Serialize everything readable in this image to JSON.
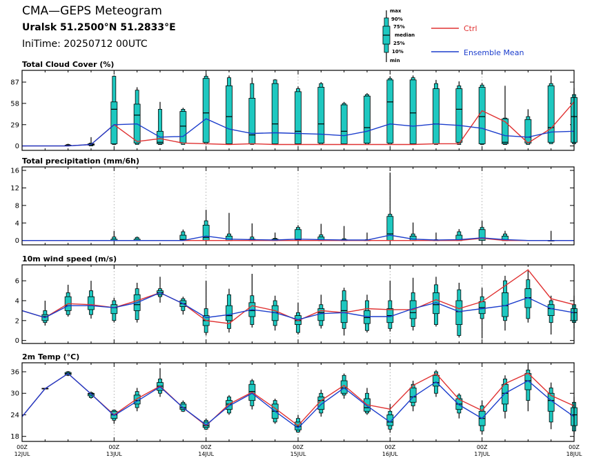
{
  "header": {
    "title": "CMA—GEPS Meteogram",
    "location": "Uralsk 51.2500°N 51.2833°E",
    "init": "IniTime: 20250712 00UTC"
  },
  "legend": {
    "box_labels": [
      "max",
      "90%",
      "75%",
      "median",
      "25%",
      "10%",
      "min"
    ],
    "ctrl_label": "Ctrl",
    "mean_label": "Ensemble Mean",
    "ctrl_color": "#e03030",
    "mean_color": "#1a3ccc",
    "box_color": "#1ec8c0"
  },
  "x_axis": {
    "labels": [
      {
        "i": 0,
        "top": "00Z",
        "bot": "12JUL"
      },
      {
        "i": 4,
        "top": "00Z",
        "bot": "13JUL"
      },
      {
        "i": 8,
        "top": "00Z",
        "bot": "14JUL"
      },
      {
        "i": 12,
        "top": "00Z",
        "bot": "15JUL"
      },
      {
        "i": 16,
        "top": "00Z",
        "bot": "16JUL"
      },
      {
        "i": 20,
        "top": "00Z",
        "bot": "17JUL"
      },
      {
        "i": 24,
        "top": "00Z",
        "bot": "18JUL"
      }
    ]
  },
  "chart_data": [
    {
      "type": "box",
      "title": "Total Cloud Cover (%)",
      "unit": "%",
      "ylim": [
        -6,
        103
      ],
      "yticks": [
        "0",
        "29",
        "58",
        "87"
      ],
      "ytick_values": [
        0,
        29,
        58,
        87
      ],
      "ctrl": [
        0,
        0,
        0,
        2,
        29,
        6,
        10,
        4,
        3,
        2,
        3,
        2,
        2,
        2,
        2,
        2,
        2,
        2,
        3,
        3,
        48,
        33,
        4,
        24,
        60
      ],
      "mean": [
        0,
        0,
        0,
        2,
        29,
        30,
        12,
        13,
        37,
        23,
        17,
        18,
        17,
        16,
        14,
        20,
        30,
        27,
        30,
        28,
        24,
        14,
        12,
        19,
        20
      ],
      "boxes": [
        null,
        null,
        [
          0,
          0,
          0,
          1,
          1,
          2,
          3
        ],
        [
          0,
          0,
          1,
          2,
          3,
          4,
          12
        ],
        [
          2,
          2,
          3,
          50,
          60,
          95,
          96
        ],
        [
          2,
          2,
          4,
          42,
          57,
          76,
          80
        ],
        [
          2,
          2,
          3,
          5,
          20,
          50,
          60
        ],
        [
          2,
          2,
          4,
          27,
          47,
          50,
          52
        ],
        [
          2,
          3,
          5,
          45,
          92,
          95,
          98
        ],
        [
          2,
          2,
          3,
          40,
          82,
          93,
          96
        ],
        [
          2,
          2,
          3,
          15,
          65,
          85,
          93
        ],
        [
          2,
          2,
          3,
          30,
          85,
          90,
          91
        ],
        [
          2,
          2,
          3,
          20,
          74,
          78,
          81
        ],
        [
          2,
          2,
          4,
          30,
          80,
          85,
          87
        ],
        [
          2,
          2,
          3,
          20,
          56,
          58,
          60
        ],
        [
          2,
          2,
          4,
          25,
          68,
          70,
          72
        ],
        [
          2,
          2,
          4,
          60,
          90,
          92,
          95
        ],
        [
          2,
          2,
          3,
          45,
          90,
          93,
          96
        ],
        [
          2,
          2,
          3,
          30,
          78,
          85,
          90
        ],
        [
          2,
          2,
          5,
          50,
          78,
          82,
          88
        ],
        [
          2,
          2,
          3,
          40,
          80,
          83,
          86
        ],
        [
          2,
          2,
          3,
          5,
          37,
          38,
          82
        ],
        [
          2,
          2,
          4,
          12,
          36,
          40,
          50
        ],
        [
          3,
          3,
          5,
          25,
          82,
          85,
          96
        ],
        [
          3,
          3,
          5,
          40,
          66,
          70,
          79
        ]
      ]
    },
    {
      "type": "box",
      "title": "Total precipitation (mm/6h)",
      "unit": "mm/6h",
      "ylim": [
        -1,
        16.8
      ],
      "yticks": [
        "0",
        "4",
        "8",
        "12",
        "16"
      ],
      "ytick_values": [
        0,
        4,
        8,
        12,
        16
      ],
      "ctrl": [
        0,
        0,
        0,
        0,
        0,
        0,
        0,
        0,
        0,
        0,
        0,
        0,
        0,
        0,
        0,
        0,
        0,
        0,
        0,
        0,
        0.5,
        0,
        0,
        0,
        0
      ],
      "mean": [
        0,
        0,
        0,
        0,
        0,
        0,
        0,
        0,
        1,
        0.3,
        0.2,
        0.1,
        0.3,
        0.2,
        0.1,
        0.1,
        1.2,
        0.3,
        0.1,
        0.2,
        0.6,
        0.2,
        0,
        0,
        0
      ],
      "boxes": [
        null,
        null,
        null,
        null,
        [
          0,
          0,
          0,
          0,
          0.3,
          0.8,
          2.2
        ],
        [
          0,
          0,
          0,
          0,
          0.3,
          0.7,
          0.9
        ],
        null,
        [
          0,
          0,
          0,
          0.2,
          1.2,
          2,
          2.5
        ],
        [
          0,
          0,
          0,
          0.7,
          3.5,
          4.5,
          7
        ],
        [
          0,
          0,
          0,
          0,
          1,
          1.5,
          6.3
        ],
        [
          0,
          0,
          0,
          0,
          0.3,
          0.8,
          3.9
        ],
        [
          0,
          0,
          0,
          0,
          0.3,
          0.5,
          1.8
        ],
        [
          0,
          0,
          0,
          0.2,
          2.5,
          3,
          3.5
        ],
        [
          0,
          0,
          0,
          0,
          0.8,
          1.3,
          3.8
        ],
        [
          0,
          0,
          0,
          0,
          0.2,
          0.4,
          3.3
        ],
        [
          0,
          0,
          0,
          0,
          0.1,
          0.2,
          1.8
        ],
        [
          0,
          0,
          0,
          1.5,
          5.5,
          6,
          15.5
        ],
        [
          0,
          0,
          0,
          0,
          1,
          1.5,
          4.1
        ],
        [
          0,
          0,
          0,
          0,
          0.1,
          0.2,
          1.8
        ],
        [
          0,
          0,
          0,
          0,
          1.2,
          2,
          2.6
        ],
        [
          0,
          0,
          0,
          0.5,
          2.5,
          3,
          4.5
        ],
        [
          0,
          0,
          0,
          0,
          1,
          1.5,
          2.2
        ],
        null,
        [
          0,
          0,
          0,
          0,
          0,
          0,
          2.2
        ],
        null
      ]
    },
    {
      "type": "box",
      "title": "10m wind speed (m/s)",
      "unit": "m/s",
      "ylim": [
        -0.3,
        7.6
      ],
      "yticks": [
        "0",
        "2",
        "4",
        "6"
      ],
      "ytick_values": [
        0,
        2,
        4,
        6
      ],
      "ctrl": [
        3.0,
        2.3,
        3.7,
        3.6,
        3.3,
        4.0,
        4.8,
        3.7,
        2.0,
        1.7,
        3.5,
        3.0,
        2.0,
        3.0,
        2.8,
        3.2,
        3.1,
        3.1,
        4.1,
        3.2,
        3.9,
        5.5,
        7.1,
        4.2,
        3.6
      ],
      "mean": [
        3.0,
        2.3,
        3.5,
        3.5,
        3.3,
        3.8,
        4.8,
        3.7,
        2.3,
        2.6,
        3.1,
        2.8,
        2.1,
        2.7,
        2.8,
        2.4,
        2.4,
        3.2,
        3.8,
        2.9,
        3.2,
        3.5,
        4.3,
        3.2,
        2.8
      ],
      "boxes": [
        null,
        [
          1.5,
          1.8,
          2.0,
          2.4,
          2.6,
          3.0,
          4.0
        ],
        [
          2.4,
          2.6,
          3.0,
          3.5,
          4.4,
          4.8,
          5.6
        ],
        [
          2.2,
          2.6,
          3.1,
          3.5,
          4.4,
          5.0,
          6.0
        ],
        [
          1.8,
          2.0,
          2.7,
          3.3,
          3.6,
          4.0,
          4.3
        ],
        [
          1.8,
          2.1,
          3.0,
          3.6,
          4.6,
          5.2,
          5.8
        ],
        [
          3.8,
          4.4,
          4.6,
          4.8,
          5.0,
          5.2,
          6.4
        ],
        [
          2.6,
          3.0,
          3.4,
          3.7,
          4.0,
          4.2,
          4.4
        ],
        [
          0.5,
          0.8,
          1.5,
          2.0,
          2.5,
          3.2,
          6.0
        ],
        [
          0.8,
          1.2,
          2.0,
          2.5,
          3.5,
          4.6,
          5.2
        ],
        [
          1.3,
          1.6,
          2.4,
          3.0,
          3.8,
          4.5,
          6.7
        ],
        [
          1.0,
          1.5,
          2.0,
          2.8,
          3.5,
          4.0,
          4.5
        ],
        [
          0.6,
          0.8,
          1.6,
          2.0,
          2.5,
          2.8,
          3.8
        ],
        [
          1.2,
          1.5,
          2.0,
          2.8,
          3.2,
          3.6,
          4.6
        ],
        [
          0.5,
          1.2,
          1.8,
          3.0,
          4.0,
          5.0,
          5.3
        ],
        [
          0.8,
          1.0,
          1.7,
          2.3,
          3.0,
          4.0,
          4.6
        ],
        [
          0.9,
          1.2,
          1.8,
          2.5,
          3.2,
          4.0,
          6.0
        ],
        [
          1.0,
          1.4,
          2.2,
          2.8,
          4.0,
          4.8,
          6.3
        ],
        [
          1.4,
          1.6,
          2.7,
          3.6,
          4.8,
          5.6,
          6.4
        ],
        [
          0.3,
          0.5,
          1.6,
          2.9,
          4.0,
          5.1,
          5.8
        ],
        [
          0.2,
          2.2,
          2.7,
          3.3,
          3.9,
          4.4,
          5.3
        ],
        [
          1.0,
          2.0,
          2.4,
          3.5,
          4.8,
          6.0,
          6.5
        ],
        [
          1.8,
          2.2,
          3.3,
          4.3,
          5.2,
          6.1,
          7.0
        ],
        [
          0.6,
          1.8,
          2.5,
          3.2,
          3.6,
          4.0,
          4.5
        ],
        [
          1.2,
          1.8,
          2.0,
          2.8,
          3.2,
          3.6,
          4.5
        ]
      ]
    },
    {
      "type": "box",
      "title": "2m Temp (°C)",
      "unit": "°C",
      "ylim": [
        16.6,
        38.5
      ],
      "yticks": [
        "18",
        "24",
        "30",
        "36"
      ],
      "ytick_values": [
        18,
        24,
        30,
        36
      ],
      "ctrl": [
        23.5,
        31.3,
        35.5,
        29.8,
        24.0,
        28.5,
        32.0,
        26.0,
        21.0,
        27.0,
        30.3,
        25.8,
        21.0,
        28.0,
        32.2,
        26.8,
        25.6,
        32.2,
        35.5,
        28.3,
        25.2,
        32.7,
        35.6,
        29.4,
        26.5
      ],
      "mean": [
        23.5,
        31.3,
        35.5,
        29.8,
        23.8,
        27.8,
        31.8,
        26.0,
        21.2,
        26.5,
        30.0,
        25.0,
        20.3,
        26.9,
        31.5,
        26.5,
        22.0,
        29.0,
        33.2,
        26.8,
        23.0,
        30.0,
        33.5,
        28.0,
        23.5
      ],
      "boxes": [
        null,
        [
          31.2,
          31.2,
          31.2,
          31.3,
          31.4,
          31.4,
          31.4
        ],
        [
          34.8,
          35.0,
          35.2,
          35.5,
          35.8,
          36.0,
          36.2
        ],
        [
          28.5,
          28.8,
          29.3,
          29.8,
          30.0,
          30.2,
          30.5
        ],
        [
          21.5,
          22.5,
          23.0,
          24.0,
          25.0,
          25.3,
          25.5
        ],
        [
          25.0,
          26.0,
          27.0,
          28.0,
          29.5,
          30.5,
          31.5
        ],
        [
          29.0,
          30.0,
          30.8,
          32.0,
          33.0,
          34.0,
          37.0
        ],
        [
          24.8,
          25.0,
          25.5,
          26.0,
          27.0,
          27.5,
          28.0
        ],
        [
          19.8,
          20.0,
          20.5,
          21.0,
          22.0,
          22.5,
          23.0
        ],
        [
          24.0,
          24.5,
          25.5,
          27.0,
          28.0,
          29.0,
          29.5
        ],
        [
          25.5,
          26.5,
          28.0,
          30.5,
          32.5,
          33.5,
          34.0
        ],
        [
          21.5,
          22.0,
          23.0,
          25.0,
          27.0,
          28.0,
          28.5
        ],
        [
          19.0,
          19.2,
          19.8,
          20.8,
          22.0,
          23.0,
          24.0
        ],
        [
          23.5,
          24.5,
          25.5,
          28.0,
          29.0,
          30.0,
          31.0
        ],
        [
          28.5,
          29.5,
          30.0,
          31.5,
          33.5,
          35.0,
          35.5
        ],
        [
          24.0,
          24.5,
          25.0,
          26.0,
          28.5,
          30.0,
          31.5
        ],
        [
          19.0,
          20.0,
          21.0,
          22.0,
          24.0,
          25.0,
          27.0
        ],
        [
          25.0,
          26.5,
          27.5,
          29.0,
          31.5,
          32.5,
          33.5
        ],
        [
          29.0,
          30.0,
          32.0,
          33.0,
          35.0,
          36.0,
          36.5
        ],
        [
          23.0,
          24.5,
          25.5,
          27.0,
          28.5,
          29.5,
          30.0
        ],
        [
          18.5,
          19.5,
          21.0,
          23.0,
          25.0,
          26.5,
          28.0
        ],
        [
          23.0,
          25.0,
          27.0,
          30.0,
          32.5,
          34.0,
          35.0
        ],
        [
          25.0,
          28.0,
          31.0,
          33.5,
          35.5,
          36.5,
          38.0
        ],
        [
          20.0,
          22.0,
          25.0,
          28.0,
          30.0,
          31.5,
          33.0
        ],
        [
          18.5,
          19.5,
          21.0,
          24.0,
          26.0,
          27.5,
          29.0
        ]
      ]
    }
  ]
}
